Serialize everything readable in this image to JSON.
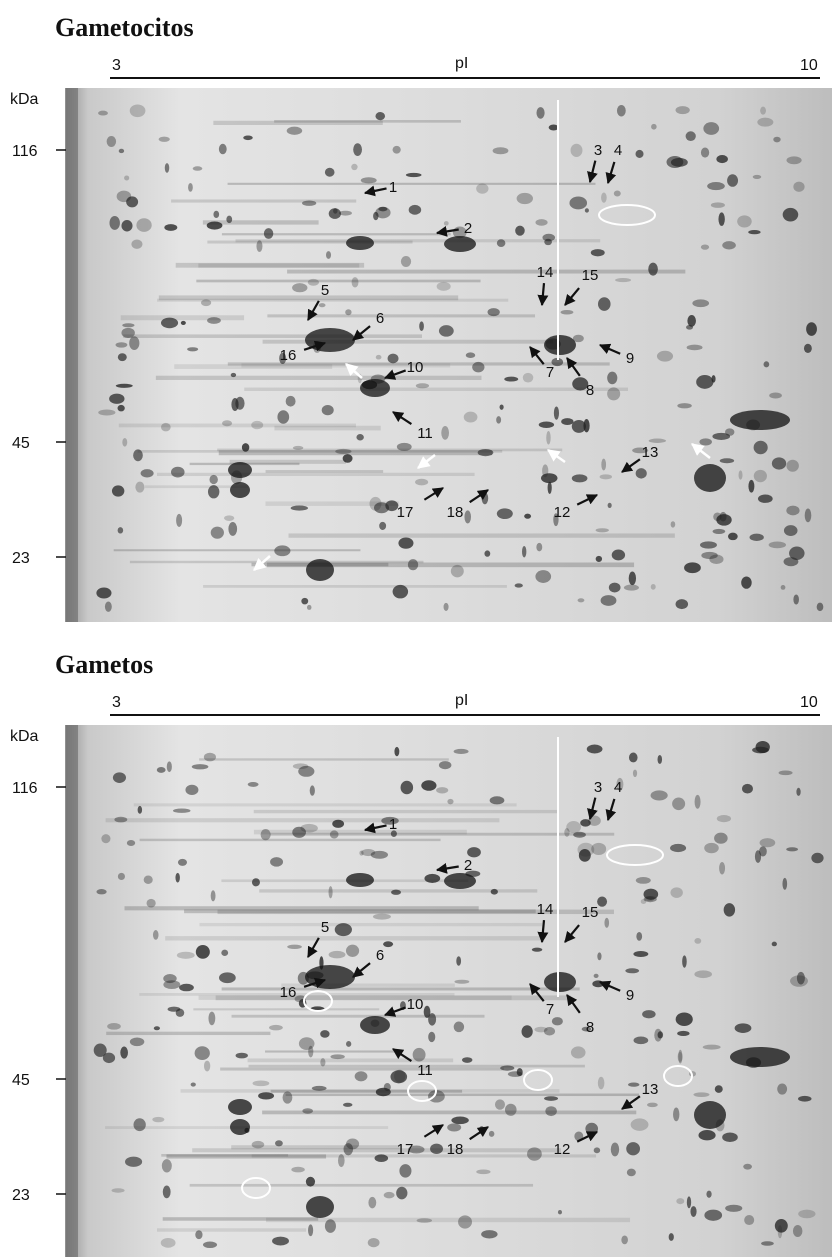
{
  "panels": [
    {
      "title": "Gametocitos",
      "axis_label": "pI",
      "pi_min": "3",
      "pi_max": "10",
      "mw_unit": "kDa",
      "mw_ticks": [
        "116",
        "45",
        "23"
      ],
      "spots": [
        "1",
        "2",
        "3",
        "4",
        "5",
        "6",
        "16",
        "10",
        "14",
        "15",
        "7",
        "8",
        "9",
        "11",
        "13",
        "17",
        "18",
        "12"
      ]
    },
    {
      "title": "Gametos",
      "axis_label": "pI",
      "pi_min": "3",
      "pi_max": "10",
      "mw_unit": "kDa",
      "mw_ticks": [
        "116",
        "45",
        "23"
      ],
      "spots": [
        "1",
        "2",
        "3",
        "4",
        "5",
        "6",
        "16",
        "10",
        "14",
        "15",
        "7",
        "8",
        "9",
        "11",
        "13",
        "17",
        "18",
        "12"
      ]
    }
  ]
}
